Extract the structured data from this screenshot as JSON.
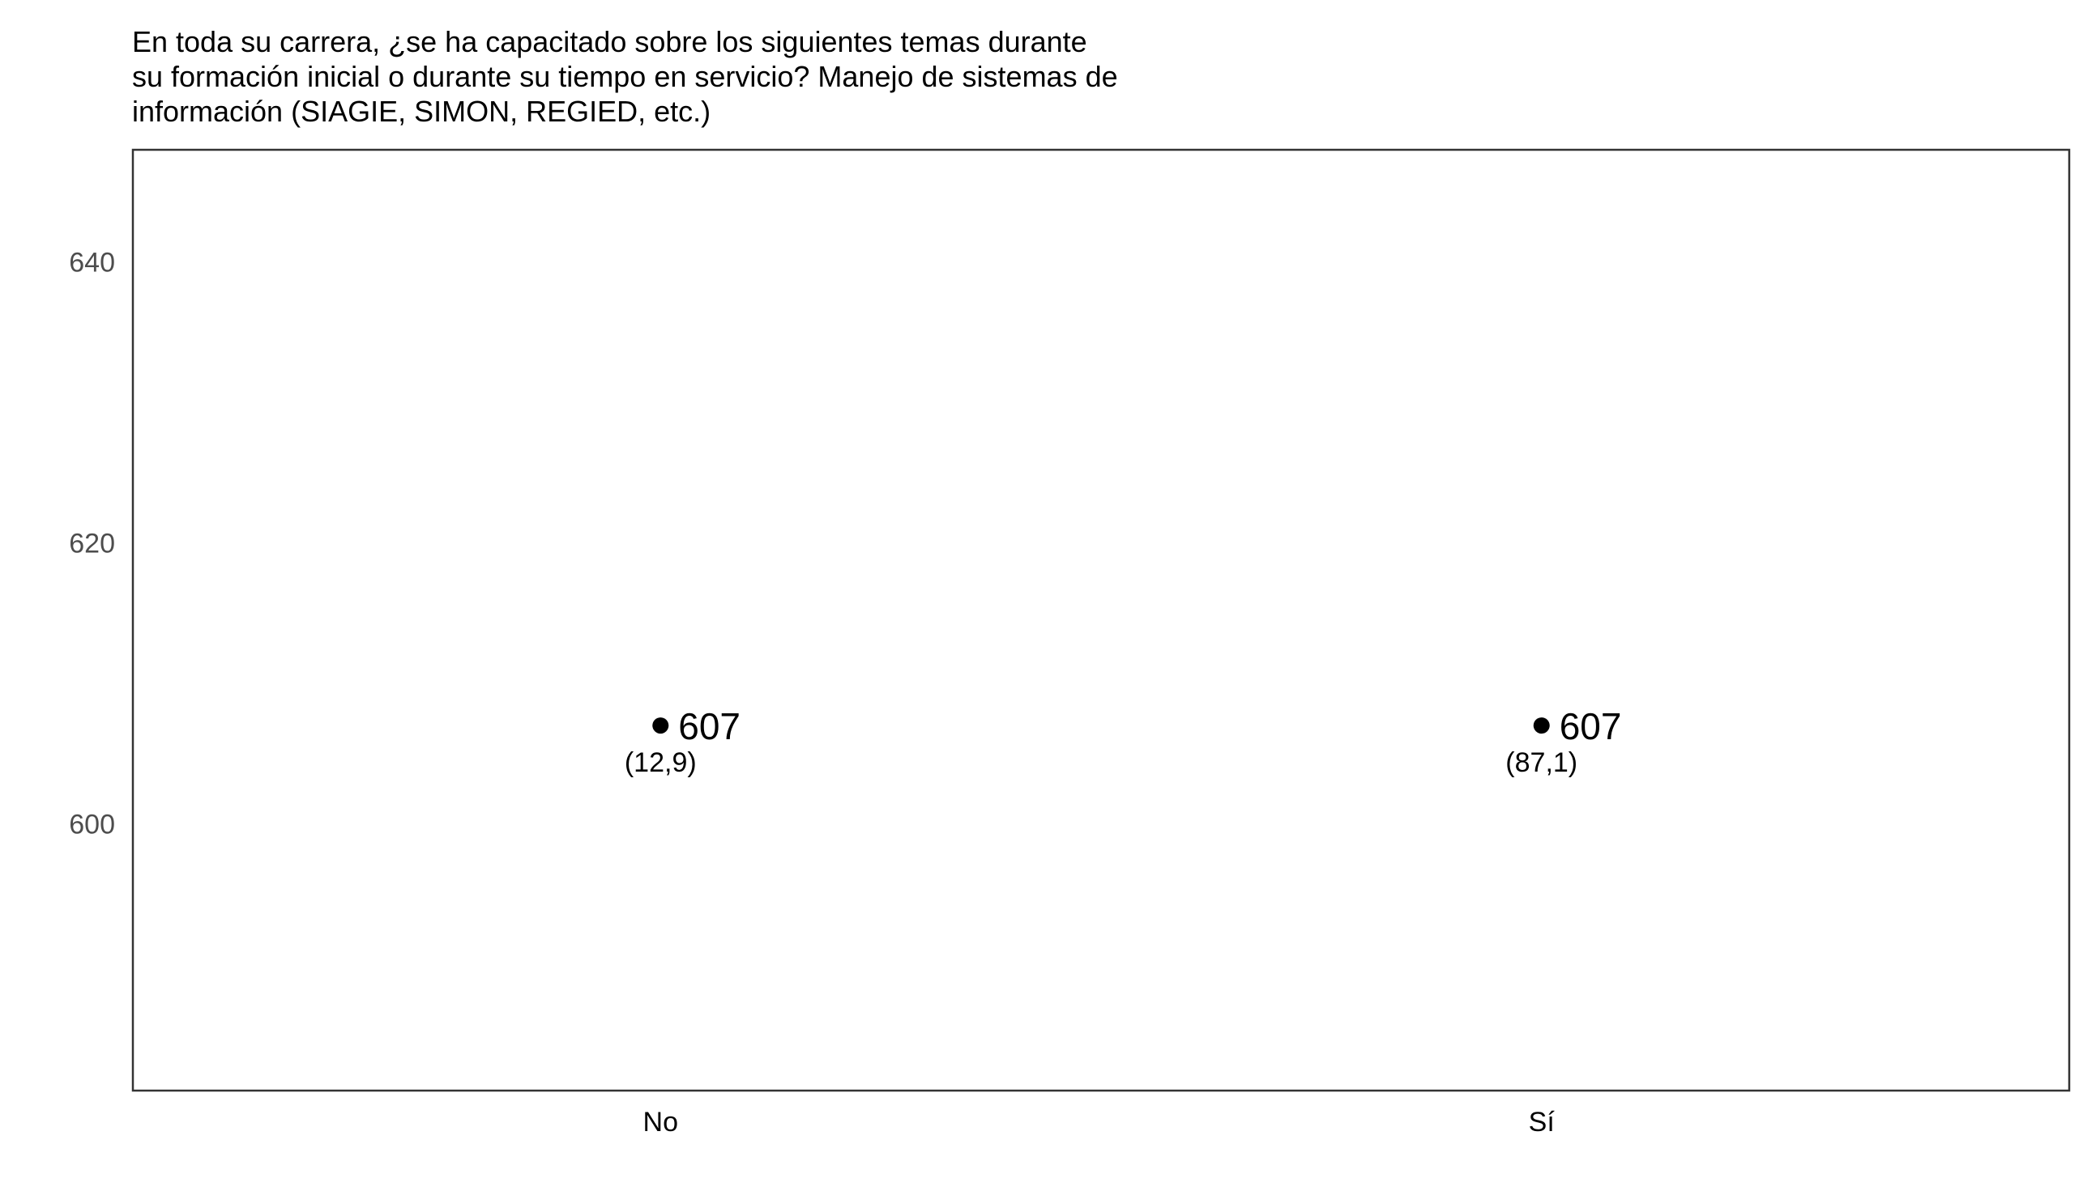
{
  "chart_data": {
    "type": "scatter",
    "title": [
      "En toda su carrera, ¿se ha capacitado sobre los siguientes temas durante",
      "su formación inicial o durante su tiempo en servicio? Manejo de sistemas de",
      "información (SIAGIE, SIMON, REGIED, etc.)"
    ],
    "xlabel": "",
    "ylabel": "",
    "categories": [
      "No",
      "Sí"
    ],
    "values": [
      607,
      607
    ],
    "value_labels": [
      "607",
      "607"
    ],
    "percent_labels": [
      "(12,9)",
      "(87,1)"
    ],
    "ylim": [
      581,
      648
    ],
    "yticks": [
      600,
      620,
      640
    ],
    "ytick_labels": [
      "600",
      "620",
      "640"
    ],
    "grid": false,
    "legend": "none",
    "point_color": "#000000",
    "frame_color": "#333333"
  }
}
